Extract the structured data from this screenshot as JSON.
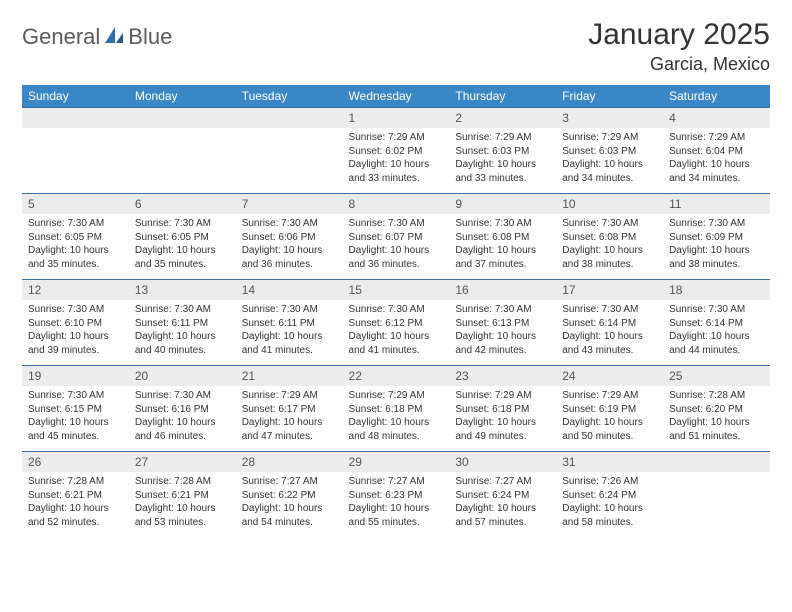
{
  "brand": {
    "textA": "General",
    "textB": "Blue"
  },
  "colors": {
    "header_bg": "#3a87c7",
    "header_text": "#ffffff",
    "daynum_bg": "#ececec",
    "daynum_text": "#555555",
    "body_text": "#333333",
    "rule": "#3a6ea5",
    "page_bg": "#ffffff",
    "logo_gray": "#5b5b5b",
    "logo_blue": "#2f6fb0"
  },
  "title": "January 2025",
  "location": "Garcia, Mexico",
  "dayNames": [
    "Sunday",
    "Monday",
    "Tuesday",
    "Wednesday",
    "Thursday",
    "Friday",
    "Saturday"
  ],
  "weeks": [
    [
      {
        "n": "",
        "sr": "",
        "ss": "",
        "dl": ""
      },
      {
        "n": "",
        "sr": "",
        "ss": "",
        "dl": ""
      },
      {
        "n": "",
        "sr": "",
        "ss": "",
        "dl": ""
      },
      {
        "n": "1",
        "sr": "Sunrise: 7:29 AM",
        "ss": "Sunset: 6:02 PM",
        "dl": "Daylight: 10 hours and 33 minutes."
      },
      {
        "n": "2",
        "sr": "Sunrise: 7:29 AM",
        "ss": "Sunset: 6:03 PM",
        "dl": "Daylight: 10 hours and 33 minutes."
      },
      {
        "n": "3",
        "sr": "Sunrise: 7:29 AM",
        "ss": "Sunset: 6:03 PM",
        "dl": "Daylight: 10 hours and 34 minutes."
      },
      {
        "n": "4",
        "sr": "Sunrise: 7:29 AM",
        "ss": "Sunset: 6:04 PM",
        "dl": "Daylight: 10 hours and 34 minutes."
      }
    ],
    [
      {
        "n": "5",
        "sr": "Sunrise: 7:30 AM",
        "ss": "Sunset: 6:05 PM",
        "dl": "Daylight: 10 hours and 35 minutes."
      },
      {
        "n": "6",
        "sr": "Sunrise: 7:30 AM",
        "ss": "Sunset: 6:05 PM",
        "dl": "Daylight: 10 hours and 35 minutes."
      },
      {
        "n": "7",
        "sr": "Sunrise: 7:30 AM",
        "ss": "Sunset: 6:06 PM",
        "dl": "Daylight: 10 hours and 36 minutes."
      },
      {
        "n": "8",
        "sr": "Sunrise: 7:30 AM",
        "ss": "Sunset: 6:07 PM",
        "dl": "Daylight: 10 hours and 36 minutes."
      },
      {
        "n": "9",
        "sr": "Sunrise: 7:30 AM",
        "ss": "Sunset: 6:08 PM",
        "dl": "Daylight: 10 hours and 37 minutes."
      },
      {
        "n": "10",
        "sr": "Sunrise: 7:30 AM",
        "ss": "Sunset: 6:08 PM",
        "dl": "Daylight: 10 hours and 38 minutes."
      },
      {
        "n": "11",
        "sr": "Sunrise: 7:30 AM",
        "ss": "Sunset: 6:09 PM",
        "dl": "Daylight: 10 hours and 38 minutes."
      }
    ],
    [
      {
        "n": "12",
        "sr": "Sunrise: 7:30 AM",
        "ss": "Sunset: 6:10 PM",
        "dl": "Daylight: 10 hours and 39 minutes."
      },
      {
        "n": "13",
        "sr": "Sunrise: 7:30 AM",
        "ss": "Sunset: 6:11 PM",
        "dl": "Daylight: 10 hours and 40 minutes."
      },
      {
        "n": "14",
        "sr": "Sunrise: 7:30 AM",
        "ss": "Sunset: 6:11 PM",
        "dl": "Daylight: 10 hours and 41 minutes."
      },
      {
        "n": "15",
        "sr": "Sunrise: 7:30 AM",
        "ss": "Sunset: 6:12 PM",
        "dl": "Daylight: 10 hours and 41 minutes."
      },
      {
        "n": "16",
        "sr": "Sunrise: 7:30 AM",
        "ss": "Sunset: 6:13 PM",
        "dl": "Daylight: 10 hours and 42 minutes."
      },
      {
        "n": "17",
        "sr": "Sunrise: 7:30 AM",
        "ss": "Sunset: 6:14 PM",
        "dl": "Daylight: 10 hours and 43 minutes."
      },
      {
        "n": "18",
        "sr": "Sunrise: 7:30 AM",
        "ss": "Sunset: 6:14 PM",
        "dl": "Daylight: 10 hours and 44 minutes."
      }
    ],
    [
      {
        "n": "19",
        "sr": "Sunrise: 7:30 AM",
        "ss": "Sunset: 6:15 PM",
        "dl": "Daylight: 10 hours and 45 minutes."
      },
      {
        "n": "20",
        "sr": "Sunrise: 7:30 AM",
        "ss": "Sunset: 6:16 PM",
        "dl": "Daylight: 10 hours and 46 minutes."
      },
      {
        "n": "21",
        "sr": "Sunrise: 7:29 AM",
        "ss": "Sunset: 6:17 PM",
        "dl": "Daylight: 10 hours and 47 minutes."
      },
      {
        "n": "22",
        "sr": "Sunrise: 7:29 AM",
        "ss": "Sunset: 6:18 PM",
        "dl": "Daylight: 10 hours and 48 minutes."
      },
      {
        "n": "23",
        "sr": "Sunrise: 7:29 AM",
        "ss": "Sunset: 6:18 PM",
        "dl": "Daylight: 10 hours and 49 minutes."
      },
      {
        "n": "24",
        "sr": "Sunrise: 7:29 AM",
        "ss": "Sunset: 6:19 PM",
        "dl": "Daylight: 10 hours and 50 minutes."
      },
      {
        "n": "25",
        "sr": "Sunrise: 7:28 AM",
        "ss": "Sunset: 6:20 PM",
        "dl": "Daylight: 10 hours and 51 minutes."
      }
    ],
    [
      {
        "n": "26",
        "sr": "Sunrise: 7:28 AM",
        "ss": "Sunset: 6:21 PM",
        "dl": "Daylight: 10 hours and 52 minutes."
      },
      {
        "n": "27",
        "sr": "Sunrise: 7:28 AM",
        "ss": "Sunset: 6:21 PM",
        "dl": "Daylight: 10 hours and 53 minutes."
      },
      {
        "n": "28",
        "sr": "Sunrise: 7:27 AM",
        "ss": "Sunset: 6:22 PM",
        "dl": "Daylight: 10 hours and 54 minutes."
      },
      {
        "n": "29",
        "sr": "Sunrise: 7:27 AM",
        "ss": "Sunset: 6:23 PM",
        "dl": "Daylight: 10 hours and 55 minutes."
      },
      {
        "n": "30",
        "sr": "Sunrise: 7:27 AM",
        "ss": "Sunset: 6:24 PM",
        "dl": "Daylight: 10 hours and 57 minutes."
      },
      {
        "n": "31",
        "sr": "Sunrise: 7:26 AM",
        "ss": "Sunset: 6:24 PM",
        "dl": "Daylight: 10 hours and 58 minutes."
      },
      {
        "n": "",
        "sr": "",
        "ss": "",
        "dl": ""
      }
    ]
  ]
}
